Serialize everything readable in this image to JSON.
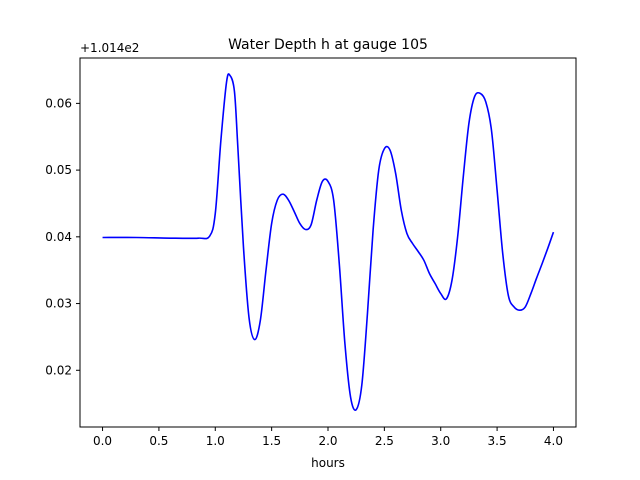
{
  "chart_data": {
    "type": "line",
    "title": "Water Depth h at gauge 105",
    "xlabel": "hours",
    "ylabel": "",
    "y_offset_label": "+1.014e2",
    "xlim": [
      -0.2,
      4.2
    ],
    "ylim": [
      0.0115,
      0.0668
    ],
    "x_ticks": [
      0.0,
      0.5,
      1.0,
      1.5,
      2.0,
      2.5,
      3.0,
      3.5,
      4.0
    ],
    "x_tick_labels": [
      "0.0",
      "0.5",
      "1.0",
      "1.5",
      "2.0",
      "2.5",
      "3.0",
      "3.5",
      "4.0"
    ],
    "y_ticks": [
      0.02,
      0.03,
      0.04,
      0.05,
      0.06
    ],
    "y_tick_labels": [
      "0.02",
      "0.03",
      "0.04",
      "0.05",
      "0.06"
    ],
    "grid": false,
    "legend": "none",
    "series": [
      {
        "color": "#0000ff",
        "x": [
          0.0,
          0.3,
          0.6,
          0.85,
          0.95,
          1.0,
          1.05,
          1.1,
          1.13,
          1.17,
          1.2,
          1.25,
          1.3,
          1.35,
          1.4,
          1.45,
          1.5,
          1.55,
          1.6,
          1.65,
          1.7,
          1.75,
          1.8,
          1.85,
          1.9,
          1.95,
          2.0,
          2.05,
          2.1,
          2.15,
          2.2,
          2.25,
          2.3,
          2.35,
          2.4,
          2.45,
          2.5,
          2.55,
          2.6,
          2.65,
          2.7,
          2.75,
          2.8,
          2.85,
          2.9,
          2.95,
          3.0,
          3.05,
          3.1,
          3.15,
          3.2,
          3.25,
          3.3,
          3.35,
          3.4,
          3.45,
          3.5,
          3.55,
          3.6,
          3.65,
          3.7,
          3.75,
          3.8,
          3.85,
          3.9,
          3.95,
          4.0
        ],
        "values": [
          0.0399,
          0.0399,
          0.0398,
          0.0398,
          0.0401,
          0.0435,
          0.0545,
          0.0632,
          0.0642,
          0.0618,
          0.0535,
          0.0385,
          0.0278,
          0.0246,
          0.0275,
          0.035,
          0.042,
          0.0455,
          0.0464,
          0.0455,
          0.0438,
          0.042,
          0.0411,
          0.0418,
          0.0455,
          0.0483,
          0.0483,
          0.0455,
          0.036,
          0.024,
          0.016,
          0.0141,
          0.0178,
          0.0285,
          0.041,
          0.05,
          0.0532,
          0.053,
          0.0495,
          0.044,
          0.0405,
          0.039,
          0.0378,
          0.0365,
          0.0345,
          0.033,
          0.0315,
          0.0307,
          0.0335,
          0.04,
          0.049,
          0.057,
          0.061,
          0.0615,
          0.0602,
          0.056,
          0.047,
          0.0375,
          0.0312,
          0.0295,
          0.029,
          0.0295,
          0.0315,
          0.0338,
          0.036,
          0.0383,
          0.0407
        ]
      }
    ]
  }
}
